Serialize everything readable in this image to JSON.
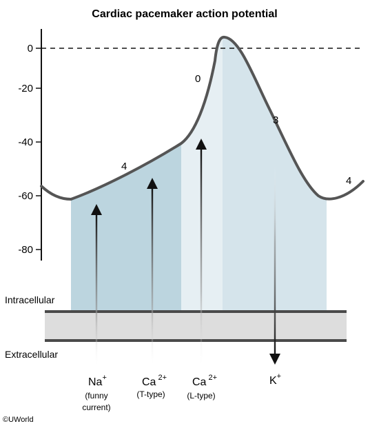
{
  "title": "Cardiac pacemaker action potential",
  "y_ticks": [
    {
      "value": 0,
      "label": "0"
    },
    {
      "value": -20,
      "label": "-20"
    },
    {
      "value": -40,
      "label": "-40"
    },
    {
      "value": -60,
      "label": "-60"
    },
    {
      "value": -80,
      "label": "-80"
    }
  ],
  "phases": {
    "phase4_left": "4",
    "phase0": "0",
    "phase3": "3",
    "phase4_right": "4"
  },
  "membrane": {
    "intracellular": "Intracellular",
    "extracellular": "Extracellular"
  },
  "ions": {
    "na": {
      "symbol": "Na",
      "charge": "+",
      "line1": "(funny",
      "line2": "current)"
    },
    "ca_t": {
      "symbol": "Ca",
      "charge": "2+",
      "line1": "(T-type)"
    },
    "ca_l": {
      "symbol": "Ca",
      "charge": "2+",
      "line1": "(L-type)"
    },
    "k": {
      "symbol": "K",
      "charge": "+"
    }
  },
  "credit": "©UWorld",
  "colors": {
    "curve": "#555555",
    "region_phase4": "#bcd5df",
    "region_phase0": "#e6eff3",
    "region_phase3": "#d5e4eb",
    "membrane": "#dddddd",
    "arrow": "#111111"
  }
}
